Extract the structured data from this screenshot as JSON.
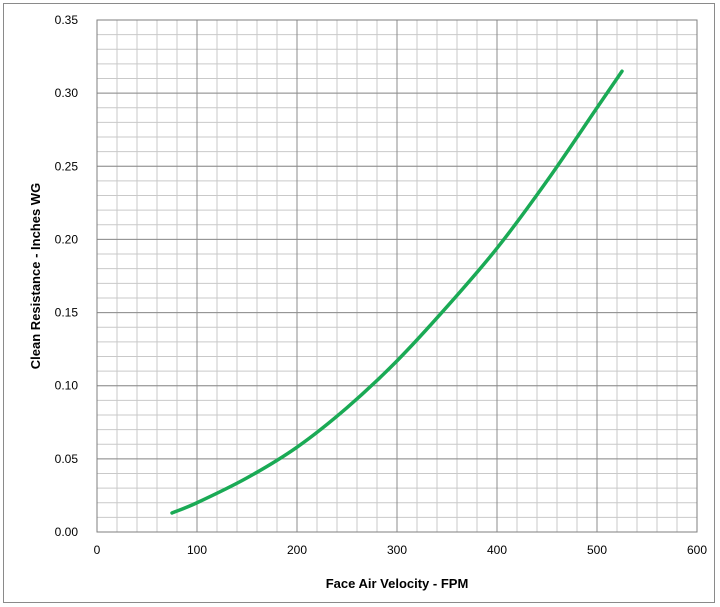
{
  "chart_data": {
    "type": "line",
    "title": "",
    "xlabel": "Face Air Velocity - FPM",
    "ylabel": "Clean Resistance - Inches WG",
    "xlim": [
      0,
      600
    ],
    "ylim": [
      0,
      0.35
    ],
    "x_ticks": [
      0,
      100,
      200,
      300,
      400,
      500,
      600
    ],
    "x_tick_labels": [
      "0",
      "100",
      "200",
      "300",
      "400",
      "500",
      "600"
    ],
    "y_ticks": [
      0,
      0.05,
      0.1,
      0.15,
      0.2,
      0.25,
      0.3,
      0.35
    ],
    "y_tick_labels": [
      "0.00",
      "0.05",
      "0.10",
      "0.15",
      "0.20",
      "0.25",
      "0.30",
      "0.35"
    ],
    "grid": true,
    "minor_x_step": 20,
    "minor_y_step": 0.01,
    "series": [
      {
        "color": "#1aaa55",
        "x": [
          75,
          100,
          150,
          200,
          250,
          300,
          350,
          400,
          450,
          500,
          525
        ],
        "y": [
          0.013,
          0.02,
          0.037,
          0.058,
          0.085,
          0.117,
          0.154,
          0.194,
          0.24,
          0.29,
          0.315
        ]
      }
    ]
  }
}
